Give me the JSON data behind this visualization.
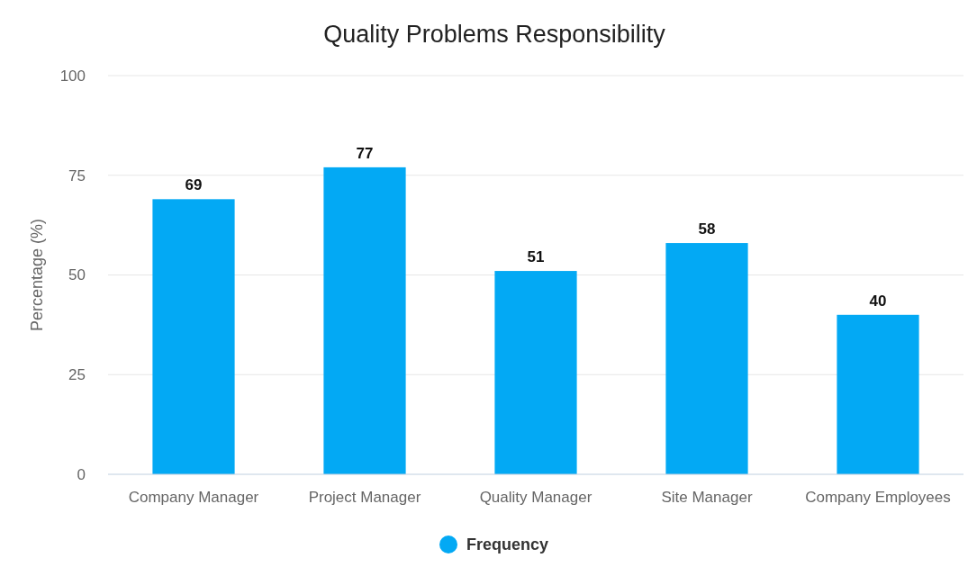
{
  "chart_data": {
    "type": "bar",
    "title": "Quality Problems Responsibility",
    "ylabel": "Percentage (%)",
    "categories": [
      "Company Manager",
      "Project Manager",
      "Quality Manager",
      "Site Manager",
      "Company Employees"
    ],
    "series": [
      {
        "name": "Frequency",
        "color": "#03a9f4",
        "values": [
          69,
          77,
          51,
          58,
          40
        ]
      }
    ],
    "ylim": [
      0,
      100
    ],
    "yticks": [
      0,
      25,
      50,
      75,
      100
    ],
    "grid": "y",
    "legend": "bottom",
    "data_labels": true
  }
}
